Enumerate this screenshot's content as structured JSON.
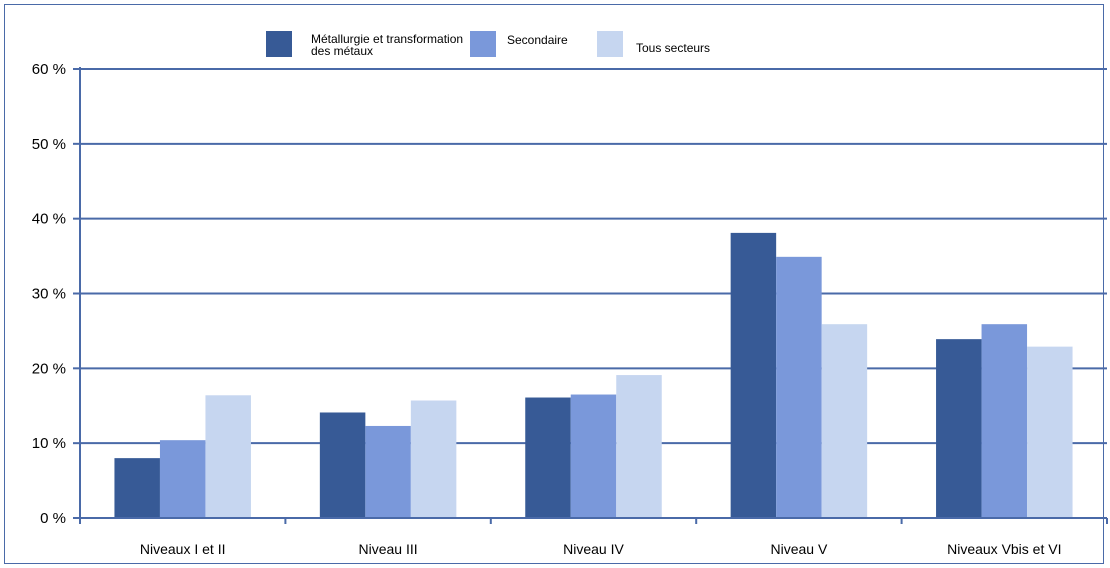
{
  "chart_data": {
    "type": "bar",
    "categories": [
      "Niveaux I et II",
      "Niveau III",
      "Niveau IV",
      "Niveau V",
      "Niveaux Vbis et VI"
    ],
    "series": [
      {
        "name_lines": [
          "Métallurgie et transformation",
          "des métaux"
        ],
        "color": "#375a96",
        "values": [
          8,
          14.1,
          16.1,
          38.1,
          23.9
        ]
      },
      {
        "name": "Secondaire",
        "color": "#7a98da",
        "values": [
          10.4,
          12.3,
          16.5,
          34.9,
          25.9
        ]
      },
      {
        "name": "Tous secteurs",
        "color": "#c6d6f0",
        "values": [
          16.4,
          15.7,
          19.1,
          25.9,
          22.9
        ]
      }
    ],
    "ylim": [
      0,
      60
    ],
    "yticks": [
      0,
      10,
      20,
      30,
      40,
      50,
      60
    ],
    "ytick_labels": [
      "0 %",
      "10 %",
      "20 %",
      "30 %",
      "40 %",
      "50 %",
      "60 %"
    ],
    "grid": true,
    "legend_position": "top-center"
  }
}
